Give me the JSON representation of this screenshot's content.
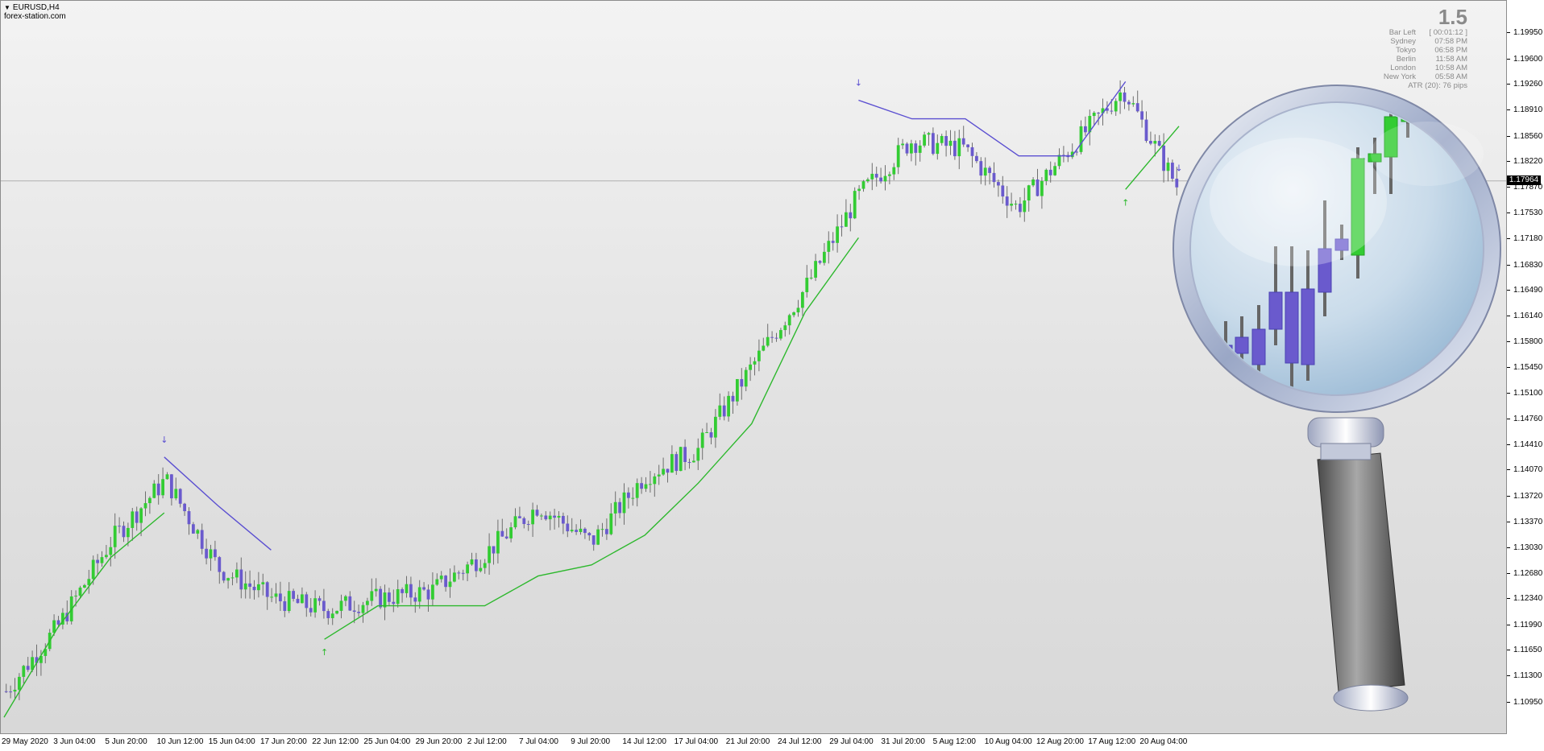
{
  "chart": {
    "symbol": "EURUSD,H4",
    "site": "forex-station.com",
    "current_price": "1.17964",
    "price_levels": [
      "1.19950",
      "1.19600",
      "1.19260",
      "1.18910",
      "1.18560",
      "1.18220",
      "1.17870",
      "1.17530",
      "1.17180",
      "1.16830",
      "1.16490",
      "1.16140",
      "1.15800",
      "1.15450",
      "1.15100",
      "1.14760",
      "1.14410",
      "1.14070",
      "1.13720",
      "1.13370",
      "1.13030",
      "1.12680",
      "1.12340",
      "1.11990",
      "1.11650",
      "1.11300",
      "1.10950"
    ],
    "time_labels": [
      "29 May 2020",
      "3 Jun 04:00",
      "5 Jun 20:00",
      "10 Jun 12:00",
      "15 Jun 04:00",
      "17 Jun 20:00",
      "22 Jun 12:00",
      "25 Jun 04:00",
      "29 Jun 20:00",
      "2 Jul 12:00",
      "7 Jul 04:00",
      "9 Jul 20:00",
      "14 Jul 12:00",
      "17 Jul 04:00",
      "21 Jul 20:00",
      "24 Jul 12:00",
      "29 Jul 04:00",
      "31 Jul 20:00",
      "5 Aug 12:00",
      "10 Aug 04:00",
      "12 Aug 20:00",
      "17 Aug 12:00",
      "20 Aug 04:00"
    ],
    "colors": {
      "bull": "#33cc33",
      "bear": "#6a5acd",
      "wick": "#6e6e6e",
      "bg": "#e8e8e8"
    }
  },
  "info_panel": {
    "version": "1.5",
    "rows": [
      {
        "label": "Bar Left",
        "value": "[ 00:01:12 ]"
      },
      {
        "label": "Sydney",
        "value": "07:58 PM"
      },
      {
        "label": "Tokyo",
        "value": "06:58 PM"
      },
      {
        "label": "Berlin",
        "value": "11:58 AM"
      },
      {
        "label": "London",
        "value": "10:58 AM"
      },
      {
        "label": "New York",
        "value": "05:58 AM"
      }
    ],
    "atr": "ATR (20): 76 pips"
  },
  "chart_data": {
    "type": "candlestick",
    "title": "",
    "xlabel": "",
    "ylabel": "",
    "ylim": [
      1.106,
      1.203
    ],
    "x": [
      "29 May 2020",
      "3 Jun 04:00",
      "5 Jun 20:00",
      "10 Jun 12:00",
      "15 Jun 04:00",
      "17 Jun 20:00",
      "22 Jun 12:00",
      "25 Jun 04:00",
      "29 Jun 20:00",
      "2 Jul 12:00",
      "7 Jul 04:00",
      "9 Jul 20:00",
      "14 Jul 12:00",
      "17 Jul 04:00",
      "21 Jul 20:00",
      "24 Jul 12:00",
      "29 Jul 04:00",
      "31 Jul 20:00",
      "5 Aug 12:00",
      "10 Aug 04:00",
      "12 Aug 20:00",
      "17 Aug 12:00",
      "20 Aug 04:00"
    ],
    "price_trend": [
      1.111,
      1.12,
      1.1315,
      1.1395,
      1.1275,
      1.1235,
      1.122,
      1.1235,
      1.1245,
      1.1295,
      1.136,
      1.131,
      1.14,
      1.1435,
      1.1545,
      1.165,
      1.1775,
      1.185,
      1.184,
      1.176,
      1.184,
      1.192,
      1.179
    ],
    "stop_line_up": [
      1.1075,
      1.1195,
      1.129,
      1.135,
      null,
      null,
      1.118,
      1.1225,
      1.1225,
      1.1225,
      1.1265,
      1.128,
      1.132,
      1.139,
      1.147,
      1.162,
      1.172,
      null,
      null,
      null,
      null,
      1.1785,
      1.187
    ],
    "stop_line_down": [
      null,
      null,
      null,
      1.1425,
      1.136,
      1.13,
      null,
      null,
      null,
      null,
      null,
      null,
      null,
      null,
      null,
      null,
      1.1905,
      1.188,
      1.188,
      1.183,
      1.183,
      1.193,
      null
    ],
    "signals": [
      {
        "x": "10 Jun 12:00",
        "direction": "down"
      },
      {
        "x": "22 Jun 12:00",
        "direction": "up"
      },
      {
        "x": "29 Jul 04:00",
        "direction": "down"
      },
      {
        "x": "17 Aug 12:00",
        "direction": "up"
      },
      {
        "x": "20 Aug 04:00",
        "direction": "down"
      }
    ]
  }
}
